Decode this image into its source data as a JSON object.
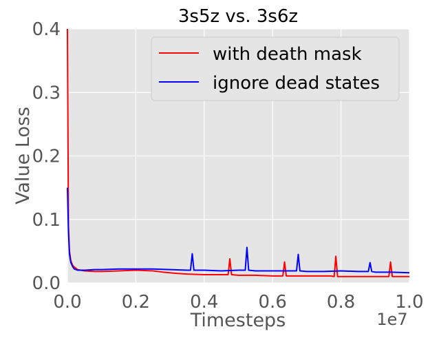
{
  "chart_data": {
    "type": "line",
    "title": "3s5z vs. 3s6z",
    "xlabel": "Timesteps",
    "ylabel": "Value Loss",
    "x_offset_text": "1e7",
    "xlim": [
      0.0,
      1.0
    ],
    "ylim": [
      0.0,
      0.4
    ],
    "xticks": [
      0.0,
      0.2,
      0.4,
      0.6,
      0.8,
      1.0
    ],
    "xtick_labels": [
      "0.0",
      "0.2",
      "0.4",
      "0.6",
      "0.8",
      "1.0"
    ],
    "yticks": [
      0.0,
      0.1,
      0.2,
      0.3,
      0.4
    ],
    "ytick_labels": [
      "0.0",
      "0.1",
      "0.2",
      "0.3",
      "0.4"
    ],
    "grid": true,
    "background": "#e5e5e5",
    "legend_position": "top-right",
    "series": [
      {
        "name": "with death mask",
        "color": "#ff0000",
        "x": [
          0.0,
          0.003,
          0.006,
          0.01,
          0.015,
          0.02,
          0.03,
          0.05,
          0.08,
          0.1,
          0.15,
          0.2,
          0.25,
          0.28,
          0.3,
          0.32,
          0.35,
          0.4,
          0.45,
          0.46,
          0.47,
          0.475,
          0.48,
          0.5,
          0.55,
          0.6,
          0.62,
          0.63,
          0.635,
          0.64,
          0.7,
          0.75,
          0.77,
          0.78,
          0.785,
          0.79,
          0.85,
          0.9,
          0.93,
          0.94,
          0.945,
          0.95,
          1.0
        ],
        "y": [
          0.4,
          0.09,
          0.05,
          0.035,
          0.028,
          0.025,
          0.021,
          0.019,
          0.018,
          0.018,
          0.019,
          0.02,
          0.019,
          0.017,
          0.016,
          0.015,
          0.014,
          0.013,
          0.013,
          0.013,
          0.013,
          0.038,
          0.013,
          0.012,
          0.012,
          0.011,
          0.011,
          0.011,
          0.033,
          0.011,
          0.011,
          0.011,
          0.011,
          0.01,
          0.042,
          0.01,
          0.01,
          0.01,
          0.01,
          0.01,
          0.033,
          0.01,
          0.01
        ]
      },
      {
        "name": "ignore dead states",
        "color": "#0000ff",
        "x": [
          0.0,
          0.003,
          0.006,
          0.01,
          0.015,
          0.02,
          0.03,
          0.05,
          0.08,
          0.1,
          0.15,
          0.2,
          0.25,
          0.3,
          0.35,
          0.36,
          0.365,
          0.37,
          0.4,
          0.45,
          0.5,
          0.52,
          0.525,
          0.53,
          0.55,
          0.6,
          0.65,
          0.67,
          0.675,
          0.68,
          0.7,
          0.75,
          0.8,
          0.85,
          0.88,
          0.885,
          0.89,
          0.9,
          0.95,
          1.0
        ],
        "y": [
          0.15,
          0.08,
          0.045,
          0.032,
          0.026,
          0.022,
          0.02,
          0.02,
          0.021,
          0.021,
          0.022,
          0.022,
          0.022,
          0.021,
          0.02,
          0.02,
          0.046,
          0.02,
          0.02,
          0.019,
          0.02,
          0.02,
          0.056,
          0.02,
          0.019,
          0.019,
          0.019,
          0.019,
          0.045,
          0.019,
          0.018,
          0.018,
          0.019,
          0.018,
          0.018,
          0.032,
          0.018,
          0.017,
          0.017,
          0.016
        ]
      }
    ]
  }
}
